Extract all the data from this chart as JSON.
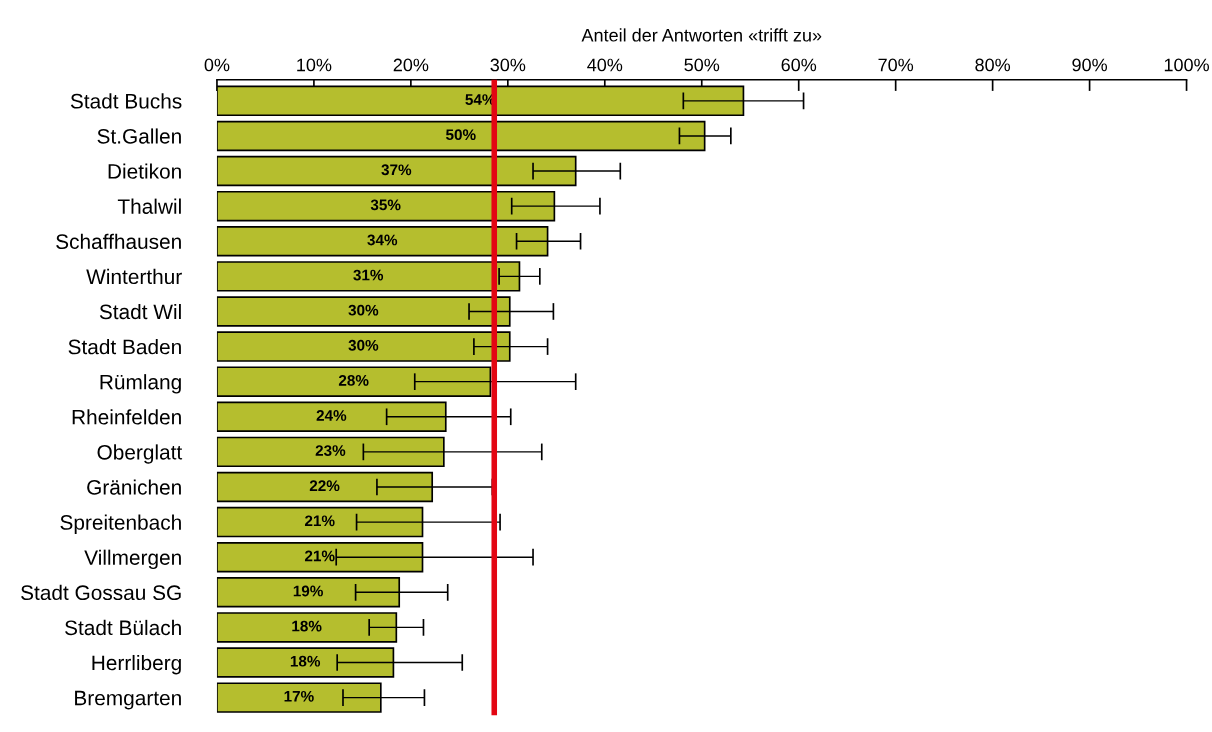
{
  "chart_data": {
    "type": "bar",
    "orientation": "horizontal",
    "xlabel": "Anteil der Antworten «trifft zu»",
    "categories": [
      "Stadt Buchs",
      "St.Gallen",
      "Dietikon",
      "Thalwil",
      "Schaffhausen",
      "Winterthur",
      "Stadt Wil",
      "Stadt Baden",
      "Rümlang",
      "Rheinfelden",
      "Oberglatt",
      "Gränichen",
      "Spreitenbach",
      "Villmergen",
      "Stadt Gossau SG",
      "Stadt Bülach",
      "Herrliberg",
      "Bremgarten"
    ],
    "values": [
      54.3,
      50.3,
      37.0,
      34.8,
      34.1,
      31.2,
      30.2,
      30.2,
      28.2,
      23.6,
      23.4,
      22.2,
      21.2,
      21.2,
      18.8,
      18.5,
      18.2,
      16.9
    ],
    "value_labels": [
      "54%",
      "50%",
      "37%",
      "35%",
      "34%",
      "31%",
      "30%",
      "30%",
      "28%",
      "24%",
      "23%",
      "22%",
      "21%",
      "21%",
      "19%",
      "18%",
      "18%",
      "17%"
    ],
    "errors": [
      [
        48.1,
        60.5
      ],
      [
        47.7,
        53.0
      ],
      [
        32.6,
        41.6
      ],
      [
        30.4,
        39.5
      ],
      [
        30.9,
        37.5
      ],
      [
        29.1,
        33.3
      ],
      [
        26.0,
        34.7
      ],
      [
        26.5,
        34.1
      ],
      [
        20.4,
        37.0
      ],
      [
        17.5,
        30.3
      ],
      [
        15.1,
        33.5
      ],
      [
        16.5,
        28.4
      ],
      [
        14.4,
        29.2
      ],
      [
        12.3,
        32.6
      ],
      [
        14.3,
        23.8
      ],
      [
        15.7,
        21.3
      ],
      [
        12.4,
        25.3
      ],
      [
        13.0,
        21.4
      ]
    ],
    "color": "#b5be2e",
    "xlim": [
      0,
      100
    ],
    "xticks": [
      {
        "value": 0,
        "label": "0%"
      },
      {
        "value": 10,
        "label": "10%"
      },
      {
        "value": 20,
        "label": "20%"
      },
      {
        "value": 30,
        "label": "30%"
      },
      {
        "value": 40,
        "label": "40%"
      },
      {
        "value": 50,
        "label": "50%"
      },
      {
        "value": 60,
        "label": "60%"
      },
      {
        "value": 70,
        "label": "70%"
      },
      {
        "value": 80,
        "label": "80%"
      },
      {
        "value": 90,
        "label": "90%"
      },
      {
        "value": 100,
        "label": "100%"
      }
    ],
    "ref_lines": [
      {
        "axis": "x",
        "value": 28.6,
        "label": null,
        "color": "#e30613"
      }
    ],
    "grid": false,
    "legend": false
  }
}
